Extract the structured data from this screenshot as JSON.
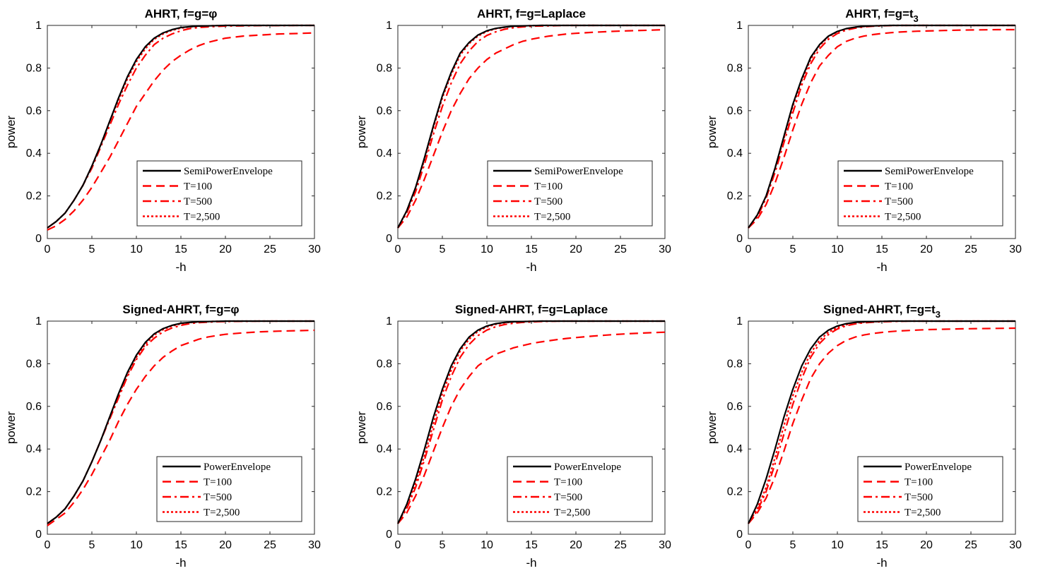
{
  "chart_data": [
    {
      "type": "line",
      "title": "AHRT, f=g=φ",
      "xlabel": "-h",
      "ylabel": "power",
      "xlim": [
        0,
        30
      ],
      "ylim": [
        0,
        1
      ],
      "xticks": [
        "0",
        "5",
        "10",
        "15",
        "20",
        "25",
        "30"
      ],
      "yticks": [
        "0",
        "0.2",
        "0.4",
        "0.6",
        "0.8",
        "1"
      ],
      "grid": false,
      "legend_position": "lower-right",
      "x": [
        0,
        1,
        2,
        3,
        4,
        5,
        6,
        7,
        8,
        9,
        10,
        11,
        12,
        13,
        14,
        15,
        16,
        17,
        18,
        19,
        20,
        22,
        24,
        26,
        28,
        30
      ],
      "series": [
        {
          "name": "SemiPowerEnvelope",
          "style": "solid",
          "color": "#000000",
          "values": [
            0.05,
            0.08,
            0.12,
            0.18,
            0.25,
            0.34,
            0.44,
            0.55,
            0.66,
            0.76,
            0.84,
            0.9,
            0.94,
            0.965,
            0.98,
            0.99,
            0.994,
            0.997,
            0.998,
            0.999,
            1.0,
            1.0,
            1.0,
            1.0,
            1.0,
            1.0
          ]
        },
        {
          "name": "T=100",
          "style": "dashed",
          "color": "#ff0000",
          "values": [
            0.04,
            0.06,
            0.09,
            0.13,
            0.18,
            0.24,
            0.31,
            0.38,
            0.46,
            0.54,
            0.62,
            0.68,
            0.74,
            0.79,
            0.83,
            0.86,
            0.885,
            0.905,
            0.92,
            0.93,
            0.94,
            0.95,
            0.955,
            0.96,
            0.962,
            0.965
          ]
        },
        {
          "name": "T=500",
          "style": "dashdot",
          "color": "#ff0000",
          "values": [
            0.05,
            0.08,
            0.12,
            0.18,
            0.25,
            0.33,
            0.43,
            0.53,
            0.63,
            0.72,
            0.8,
            0.86,
            0.91,
            0.94,
            0.96,
            0.975,
            0.985,
            0.99,
            0.993,
            0.995,
            0.997,
            0.998,
            0.999,
            0.999,
            1.0,
            1.0
          ]
        },
        {
          "name": "T=2,500",
          "style": "dotted",
          "color": "#ff0000",
          "values": [
            0.05,
            0.08,
            0.12,
            0.18,
            0.25,
            0.34,
            0.44,
            0.55,
            0.65,
            0.75,
            0.83,
            0.89,
            0.935,
            0.96,
            0.977,
            0.987,
            0.993,
            0.996,
            0.998,
            0.999,
            1.0,
            1.0,
            1.0,
            1.0,
            1.0,
            1.0
          ]
        }
      ]
    },
    {
      "type": "line",
      "title": "AHRT, f=g=Laplace",
      "xlabel": "-h",
      "ylabel": "power",
      "xlim": [
        0,
        30
      ],
      "ylim": [
        0,
        1
      ],
      "xticks": [
        "0",
        "5",
        "10",
        "15",
        "20",
        "25",
        "30"
      ],
      "yticks": [
        "0",
        "0.2",
        "0.4",
        "0.6",
        "0.8",
        "1"
      ],
      "grid": false,
      "legend_position": "lower-right",
      "x": [
        0,
        1,
        2,
        3,
        4,
        5,
        6,
        7,
        8,
        9,
        10,
        11,
        12,
        13,
        14,
        15,
        16,
        17,
        18,
        19,
        20,
        22,
        24,
        26,
        28,
        30
      ],
      "series": [
        {
          "name": "SemiPowerEnvelope",
          "style": "solid",
          "color": "#000000",
          "values": [
            0.05,
            0.13,
            0.24,
            0.38,
            0.53,
            0.67,
            0.78,
            0.87,
            0.92,
            0.955,
            0.975,
            0.986,
            0.992,
            0.996,
            0.998,
            0.999,
            1.0,
            1.0,
            1.0,
            1.0,
            1.0,
            1.0,
            1.0,
            1.0,
            1.0,
            1.0
          ]
        },
        {
          "name": "T=100",
          "style": "dashed",
          "color": "#ff0000",
          "values": [
            0.05,
            0.1,
            0.18,
            0.28,
            0.39,
            0.5,
            0.6,
            0.68,
            0.75,
            0.8,
            0.84,
            0.87,
            0.89,
            0.91,
            0.925,
            0.935,
            0.943,
            0.95,
            0.955,
            0.96,
            0.963,
            0.968,
            0.972,
            0.975,
            0.977,
            0.98
          ]
        },
        {
          "name": "T=500",
          "style": "dashdot",
          "color": "#ff0000",
          "values": [
            0.05,
            0.12,
            0.22,
            0.35,
            0.49,
            0.62,
            0.73,
            0.82,
            0.88,
            0.925,
            0.953,
            0.97,
            0.982,
            0.989,
            0.993,
            0.996,
            0.997,
            0.998,
            0.999,
            1.0,
            1.0,
            1.0,
            1.0,
            1.0,
            1.0,
            1.0
          ]
        },
        {
          "name": "T=2,500",
          "style": "dotted",
          "color": "#ff0000",
          "values": [
            0.05,
            0.13,
            0.24,
            0.37,
            0.52,
            0.66,
            0.77,
            0.86,
            0.915,
            0.95,
            0.972,
            0.984,
            0.991,
            0.995,
            0.997,
            0.999,
            1.0,
            1.0,
            1.0,
            1.0,
            1.0,
            1.0,
            1.0,
            1.0,
            1.0,
            1.0
          ]
        }
      ]
    },
    {
      "type": "line",
      "title": "AHRT, f=g=t₃",
      "xlabel": "-h",
      "ylabel": "power",
      "xlim": [
        0,
        30
      ],
      "ylim": [
        0,
        1
      ],
      "xticks": [
        "0",
        "5",
        "10",
        "15",
        "20",
        "25",
        "30"
      ],
      "yticks": [
        "0",
        "0.2",
        "0.4",
        "0.6",
        "0.8",
        "1"
      ],
      "grid": false,
      "legend_position": "lower-right",
      "x": [
        0,
        1,
        2,
        3,
        4,
        5,
        6,
        7,
        8,
        9,
        10,
        11,
        12,
        13,
        14,
        15,
        16,
        17,
        18,
        19,
        20,
        22,
        24,
        26,
        28,
        30
      ],
      "series": [
        {
          "name": "SemiPowerEnvelope",
          "style": "solid",
          "color": "#000000",
          "values": [
            0.05,
            0.11,
            0.2,
            0.33,
            0.48,
            0.63,
            0.75,
            0.85,
            0.91,
            0.95,
            0.972,
            0.985,
            0.992,
            0.996,
            0.998,
            0.999,
            1.0,
            1.0,
            1.0,
            1.0,
            1.0,
            1.0,
            1.0,
            1.0,
            1.0,
            1.0
          ]
        },
        {
          "name": "T=100",
          "style": "dashed",
          "color": "#ff0000",
          "values": [
            0.05,
            0.09,
            0.16,
            0.26,
            0.38,
            0.51,
            0.63,
            0.73,
            0.81,
            0.86,
            0.9,
            0.925,
            0.94,
            0.95,
            0.957,
            0.962,
            0.966,
            0.969,
            0.971,
            0.973,
            0.974,
            0.976,
            0.978,
            0.979,
            0.98,
            0.98
          ]
        },
        {
          "name": "T=500",
          "style": "dashdot",
          "color": "#ff0000",
          "values": [
            0.05,
            0.1,
            0.19,
            0.31,
            0.45,
            0.59,
            0.72,
            0.82,
            0.89,
            0.935,
            0.962,
            0.978,
            0.987,
            0.993,
            0.996,
            0.998,
            0.999,
            1.0,
            1.0,
            1.0,
            1.0,
            1.0,
            1.0,
            1.0,
            1.0,
            1.0
          ]
        },
        {
          "name": "T=2,500",
          "style": "dotted",
          "color": "#ff0000",
          "values": [
            0.05,
            0.11,
            0.2,
            0.33,
            0.47,
            0.62,
            0.74,
            0.84,
            0.905,
            0.947,
            0.97,
            0.984,
            0.991,
            0.995,
            0.998,
            0.999,
            1.0,
            1.0,
            1.0,
            1.0,
            1.0,
            1.0,
            1.0,
            1.0,
            1.0,
            1.0
          ]
        }
      ]
    },
    {
      "type": "line",
      "title": "Signed-AHRT, f=g=φ",
      "xlabel": "-h",
      "ylabel": "power",
      "xlim": [
        0,
        30
      ],
      "ylim": [
        0,
        1
      ],
      "xticks": [
        "0",
        "5",
        "10",
        "15",
        "20",
        "25",
        "30"
      ],
      "yticks": [
        "0",
        "0.2",
        "0.4",
        "0.6",
        "0.8",
        "1"
      ],
      "grid": false,
      "legend_position": "lower-right",
      "x": [
        0,
        1,
        2,
        3,
        4,
        5,
        6,
        7,
        8,
        9,
        10,
        11,
        12,
        13,
        14,
        15,
        16,
        17,
        18,
        19,
        20,
        22,
        24,
        26,
        28,
        30
      ],
      "series": [
        {
          "name": "PowerEnvelope",
          "style": "solid",
          "color": "#000000",
          "values": [
            0.05,
            0.08,
            0.12,
            0.18,
            0.25,
            0.34,
            0.44,
            0.55,
            0.66,
            0.76,
            0.84,
            0.9,
            0.94,
            0.965,
            0.98,
            0.99,
            0.994,
            0.997,
            0.998,
            0.999,
            1.0,
            1.0,
            1.0,
            1.0,
            1.0,
            1.0
          ]
        },
        {
          "name": "T=100",
          "style": "dashed",
          "color": "#ff0000",
          "values": [
            0.04,
            0.07,
            0.1,
            0.15,
            0.21,
            0.28,
            0.36,
            0.44,
            0.53,
            0.61,
            0.68,
            0.74,
            0.79,
            0.83,
            0.86,
            0.885,
            0.9,
            0.915,
            0.925,
            0.932,
            0.938,
            0.945,
            0.95,
            0.953,
            0.955,
            0.957
          ]
        },
        {
          "name": "T=500",
          "style": "dashdot",
          "color": "#ff0000",
          "values": [
            0.05,
            0.08,
            0.12,
            0.18,
            0.25,
            0.34,
            0.44,
            0.54,
            0.64,
            0.74,
            0.82,
            0.88,
            0.92,
            0.95,
            0.968,
            0.98,
            0.988,
            0.993,
            0.995,
            0.997,
            0.998,
            0.999,
            1.0,
            1.0,
            1.0,
            1.0
          ]
        },
        {
          "name": "T=2,500",
          "style": "dotted",
          "color": "#ff0000",
          "values": [
            0.05,
            0.08,
            0.12,
            0.18,
            0.25,
            0.34,
            0.44,
            0.55,
            0.65,
            0.75,
            0.83,
            0.89,
            0.935,
            0.96,
            0.977,
            0.987,
            0.993,
            0.996,
            0.998,
            0.999,
            1.0,
            1.0,
            1.0,
            1.0,
            1.0,
            1.0
          ]
        }
      ]
    },
    {
      "type": "line",
      "title": "Signed-AHRT, f=g=Laplace",
      "xlabel": "-h",
      "ylabel": "power",
      "xlim": [
        0,
        30
      ],
      "ylim": [
        0,
        1
      ],
      "xticks": [
        "0",
        "5",
        "10",
        "15",
        "20",
        "25",
        "30"
      ],
      "yticks": [
        "0",
        "0.2",
        "0.4",
        "0.6",
        "0.8",
        "1"
      ],
      "grid": false,
      "legend_position": "lower-right",
      "x": [
        0,
        1,
        2,
        3,
        4,
        5,
        6,
        7,
        8,
        9,
        10,
        11,
        12,
        13,
        14,
        15,
        16,
        17,
        18,
        19,
        20,
        22,
        24,
        26,
        28,
        30
      ],
      "series": [
        {
          "name": "PowerEnvelope",
          "style": "solid",
          "color": "#000000",
          "values": [
            0.05,
            0.14,
            0.26,
            0.4,
            0.55,
            0.68,
            0.79,
            0.87,
            0.925,
            0.958,
            0.977,
            0.988,
            0.994,
            0.997,
            0.998,
            0.999,
            1.0,
            1.0,
            1.0,
            1.0,
            1.0,
            1.0,
            1.0,
            1.0,
            1.0,
            1.0
          ]
        },
        {
          "name": "T=100",
          "style": "dashed",
          "color": "#ff0000",
          "values": [
            0.05,
            0.1,
            0.18,
            0.28,
            0.39,
            0.5,
            0.6,
            0.68,
            0.74,
            0.79,
            0.82,
            0.845,
            0.86,
            0.875,
            0.885,
            0.895,
            0.902,
            0.908,
            0.914,
            0.919,
            0.923,
            0.93,
            0.936,
            0.941,
            0.945,
            0.948
          ]
        },
        {
          "name": "T=500",
          "style": "dashdot",
          "color": "#ff0000",
          "values": [
            0.05,
            0.12,
            0.22,
            0.35,
            0.49,
            0.63,
            0.74,
            0.83,
            0.89,
            0.932,
            0.958,
            0.974,
            0.984,
            0.99,
            0.994,
            0.996,
            0.998,
            0.999,
            1.0,
            1.0,
            1.0,
            1.0,
            1.0,
            1.0,
            1.0,
            1.0
          ]
        },
        {
          "name": "T=2,500",
          "style": "dotted",
          "color": "#ff0000",
          "values": [
            0.05,
            0.13,
            0.24,
            0.37,
            0.52,
            0.66,
            0.77,
            0.86,
            0.915,
            0.952,
            0.973,
            0.985,
            0.992,
            0.996,
            0.998,
            0.999,
            1.0,
            1.0,
            1.0,
            1.0,
            1.0,
            1.0,
            1.0,
            1.0,
            1.0,
            1.0
          ]
        }
      ]
    },
    {
      "type": "line",
      "title": "Signed-AHRT, f=g=t₃",
      "xlabel": "-h",
      "ylabel": "power",
      "xlim": [
        0,
        30
      ],
      "ylim": [
        0,
        1
      ],
      "xticks": [
        "0",
        "5",
        "10",
        "15",
        "20",
        "25",
        "30"
      ],
      "yticks": [
        "0",
        "0.2",
        "0.4",
        "0.6",
        "0.8",
        "1"
      ],
      "grid": false,
      "legend_position": "lower-right",
      "x": [
        0,
        1,
        2,
        3,
        4,
        5,
        6,
        7,
        8,
        9,
        10,
        11,
        12,
        13,
        14,
        15,
        16,
        17,
        18,
        19,
        20,
        22,
        24,
        26,
        28,
        30
      ],
      "series": [
        {
          "name": "PowerEnvelope",
          "style": "solid",
          "color": "#000000",
          "values": [
            0.05,
            0.14,
            0.26,
            0.4,
            0.55,
            0.68,
            0.79,
            0.87,
            0.925,
            0.958,
            0.977,
            0.988,
            0.994,
            0.997,
            0.998,
            0.999,
            1.0,
            1.0,
            1.0,
            1.0,
            1.0,
            1.0,
            1.0,
            1.0,
            1.0,
            1.0
          ]
        },
        {
          "name": "T=100",
          "style": "dashed",
          "color": "#ff0000",
          "values": [
            0.05,
            0.1,
            0.17,
            0.27,
            0.39,
            0.52,
            0.63,
            0.73,
            0.8,
            0.85,
            0.885,
            0.91,
            0.925,
            0.935,
            0.942,
            0.947,
            0.951,
            0.954,
            0.956,
            0.958,
            0.96,
            0.962,
            0.964,
            0.965,
            0.966,
            0.967
          ]
        },
        {
          "name": "T=500",
          "style": "dashdot",
          "color": "#ff0000",
          "values": [
            0.05,
            0.11,
            0.2,
            0.33,
            0.47,
            0.61,
            0.73,
            0.83,
            0.895,
            0.937,
            0.963,
            0.978,
            0.987,
            0.992,
            0.995,
            0.997,
            0.998,
            0.999,
            1.0,
            1.0,
            1.0,
            1.0,
            1.0,
            1.0,
            1.0,
            1.0
          ]
        },
        {
          "name": "T=2,500",
          "style": "dotted",
          "color": "#ff0000",
          "values": [
            0.05,
            0.12,
            0.22,
            0.36,
            0.51,
            0.65,
            0.76,
            0.85,
            0.91,
            0.948,
            0.97,
            0.983,
            0.99,
            0.995,
            0.997,
            0.999,
            1.0,
            1.0,
            1.0,
            1.0,
            1.0,
            1.0,
            1.0,
            1.0,
            1.0,
            1.0
          ]
        }
      ]
    }
  ]
}
